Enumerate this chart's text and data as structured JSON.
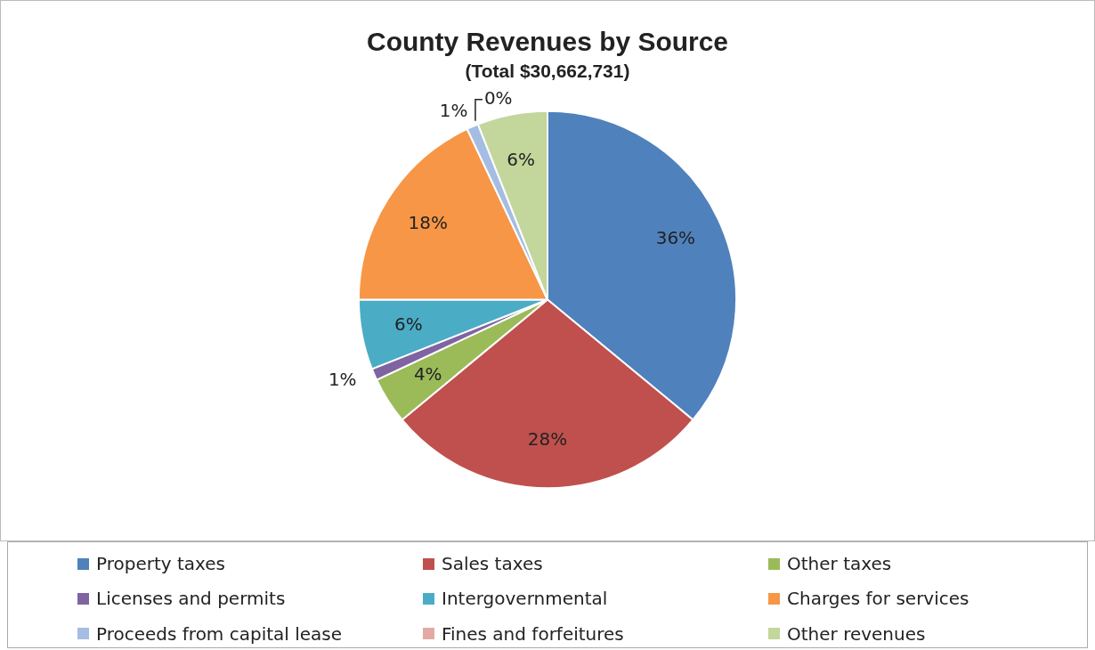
{
  "chart_data": {
    "type": "pie",
    "title": "County Revenues by Source",
    "subtitle": "(Total $30,662,731)",
    "categories": [
      "Property taxes",
      "Sales taxes",
      "Other taxes",
      "Licenses and permits",
      "Intergovernmental",
      "Charges for services",
      "Proceeds from capital lease",
      "Fines and forfeitures",
      "Other revenues"
    ],
    "values": [
      36,
      28,
      4,
      1,
      6,
      18,
      1,
      0,
      6
    ],
    "value_labels": [
      "36%",
      "28%",
      "4%",
      "1%",
      "6%",
      "18%",
      "1%",
      "0%",
      "6%"
    ],
    "colors": [
      "#4f81bd",
      "#c0504d",
      "#9bbb59",
      "#8064a2",
      "#4bacc6",
      "#f79646",
      "#a5bde3",
      "#e3aaa5",
      "#c3d69b"
    ],
    "legend": "bottom"
  }
}
